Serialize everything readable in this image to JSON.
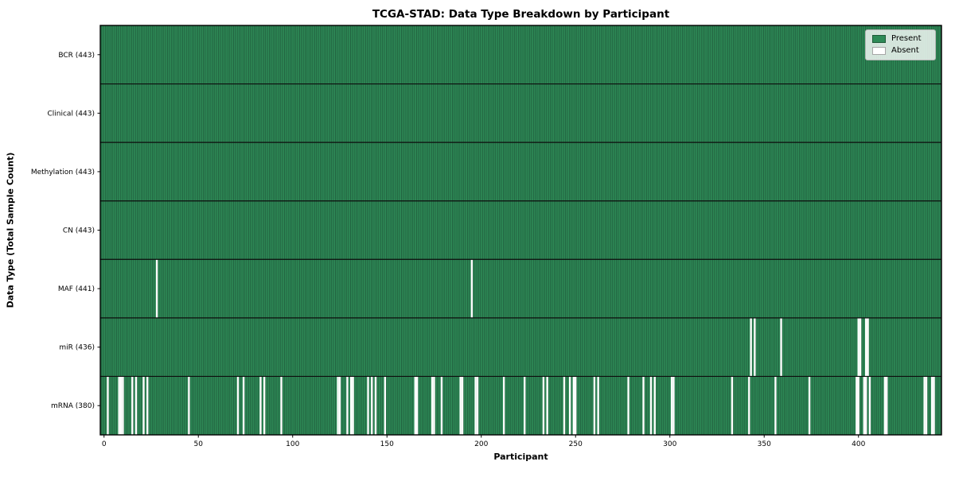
{
  "title": "TCGA-STAD: Data Type Breakdown by Participant",
  "chart_data": {
    "type": "heatmap",
    "title": "TCGA-STAD: Data Type Breakdown by Participant",
    "xlabel": "Participant",
    "ylabel": "Data Type (Total Sample Count)",
    "n_participants": 443,
    "x_ticks": [
      0,
      50,
      100,
      150,
      200,
      250,
      300,
      350,
      400
    ],
    "x_range": [
      -2,
      444
    ],
    "grid": false,
    "legend_position": "upper right",
    "legend": [
      {
        "label": "Present",
        "color": "#2E8B57"
      },
      {
        "label": "Absent",
        "color": "#FFFFFF"
      }
    ],
    "colors": {
      "present": "#2E8B57",
      "absent": "#FFFFFF",
      "bar_edge": "#1b4d33",
      "row_divider": "#0d0d0d",
      "spine": "#000000"
    },
    "rows": [
      {
        "label": "BCR (443)",
        "count": 443,
        "absent": []
      },
      {
        "label": "Clinical (443)",
        "count": 443,
        "absent": []
      },
      {
        "label": "Methylation (443)",
        "count": 443,
        "absent": []
      },
      {
        "label": "CN (443)",
        "count": 443,
        "absent": []
      },
      {
        "label": "MAF (441)",
        "count": 441,
        "absent": [
          28,
          195
        ]
      },
      {
        "label": "miR (436)",
        "count": 436,
        "absent": [
          343,
          345,
          359,
          400,
          401,
          404,
          405
        ]
      },
      {
        "label": "mRNA (380)",
        "count": 380,
        "absent": [
          2,
          8,
          9,
          10,
          15,
          17,
          21,
          23,
          45,
          71,
          74,
          83,
          85,
          94,
          124,
          125,
          129,
          131,
          132,
          140,
          142,
          144,
          149,
          165,
          166,
          174,
          175,
          179,
          189,
          190,
          197,
          198,
          212,
          223,
          233,
          235,
          244,
          247,
          249,
          250,
          260,
          262,
          278,
          286,
          290,
          292,
          301,
          302,
          333,
          342,
          356,
          374,
          399,
          400,
          403,
          404,
          406,
          414,
          415,
          435,
          436,
          439,
          440
        ]
      }
    ]
  }
}
